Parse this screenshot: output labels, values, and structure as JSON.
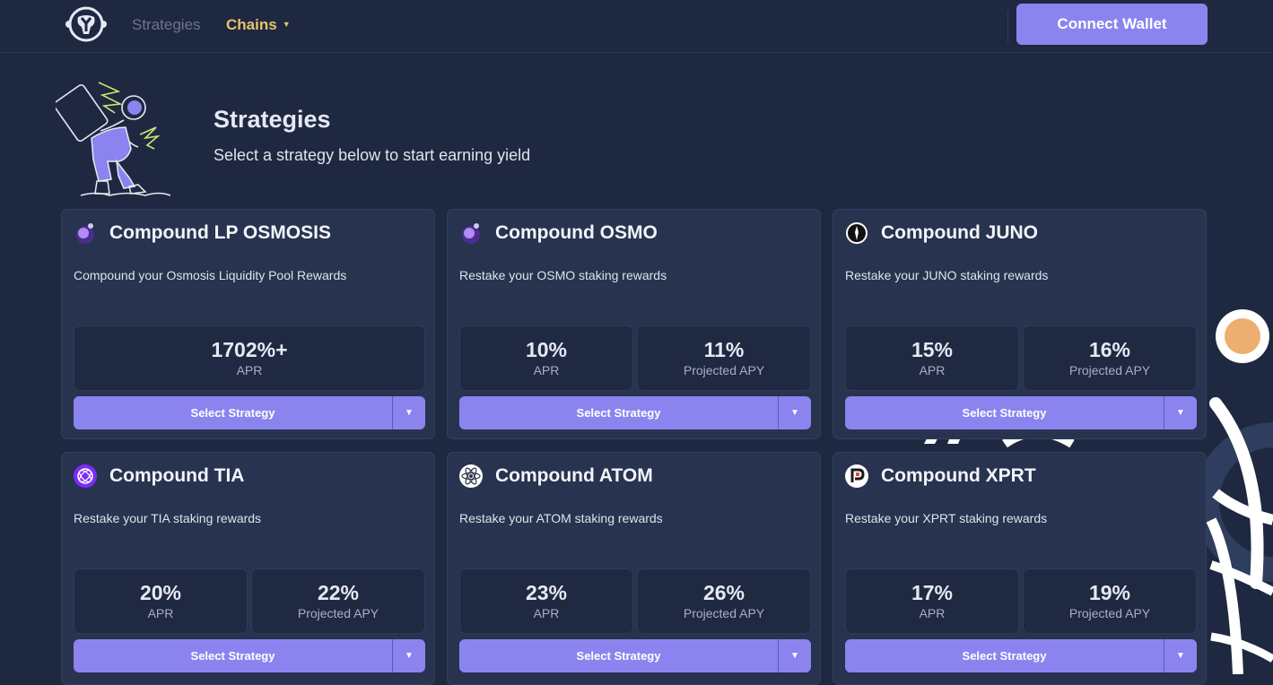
{
  "nav": {
    "strategies_label": "Strategies",
    "chains_label": "Chains",
    "connect_wallet_label": "Connect Wallet"
  },
  "header": {
    "title": "Strategies",
    "subtitle": "Select a strategy below to start earning yield"
  },
  "colors": {
    "accent": "#8b84ef",
    "background": "#1e2840",
    "card": "#27334f",
    "chains_link": "#e9c46a"
  },
  "cards": [
    {
      "title": "Compound LP OSMOSIS",
      "description": "Compound your Osmosis Liquidity Pool Rewards",
      "icon": "osmosis-icon",
      "stats": [
        {
          "value": "1702%+",
          "label": "APR"
        }
      ],
      "button": "Select Strategy"
    },
    {
      "title": "Compound OSMO",
      "description": "Restake your OSMO staking rewards",
      "icon": "osmosis-icon",
      "stats": [
        {
          "value": "10%",
          "label": "APR"
        },
        {
          "value": "11%",
          "label": "Projected APY"
        }
      ],
      "button": "Select Strategy"
    },
    {
      "title": "Compound JUNO",
      "description": "Restake your JUNO staking rewards",
      "icon": "juno-icon",
      "stats": [
        {
          "value": "15%",
          "label": "APR"
        },
        {
          "value": "16%",
          "label": "Projected APY"
        }
      ],
      "button": "Select Strategy"
    },
    {
      "title": "Compound TIA",
      "description": "Restake your TIA staking rewards",
      "icon": "celestia-icon",
      "stats": [
        {
          "value": "20%",
          "label": "APR"
        },
        {
          "value": "22%",
          "label": "Projected APY"
        }
      ],
      "button": "Select Strategy"
    },
    {
      "title": "Compound ATOM",
      "description": "Restake your ATOM staking rewards",
      "icon": "cosmos-icon",
      "stats": [
        {
          "value": "23%",
          "label": "APR"
        },
        {
          "value": "26%",
          "label": "Projected APY"
        }
      ],
      "button": "Select Strategy"
    },
    {
      "title": "Compound XPRT",
      "description": "Restake your XPRT staking rewards",
      "icon": "persistence-icon",
      "stats": [
        {
          "value": "17%",
          "label": "APR"
        },
        {
          "value": "19%",
          "label": "Projected APY"
        }
      ],
      "button": "Select Strategy"
    }
  ]
}
